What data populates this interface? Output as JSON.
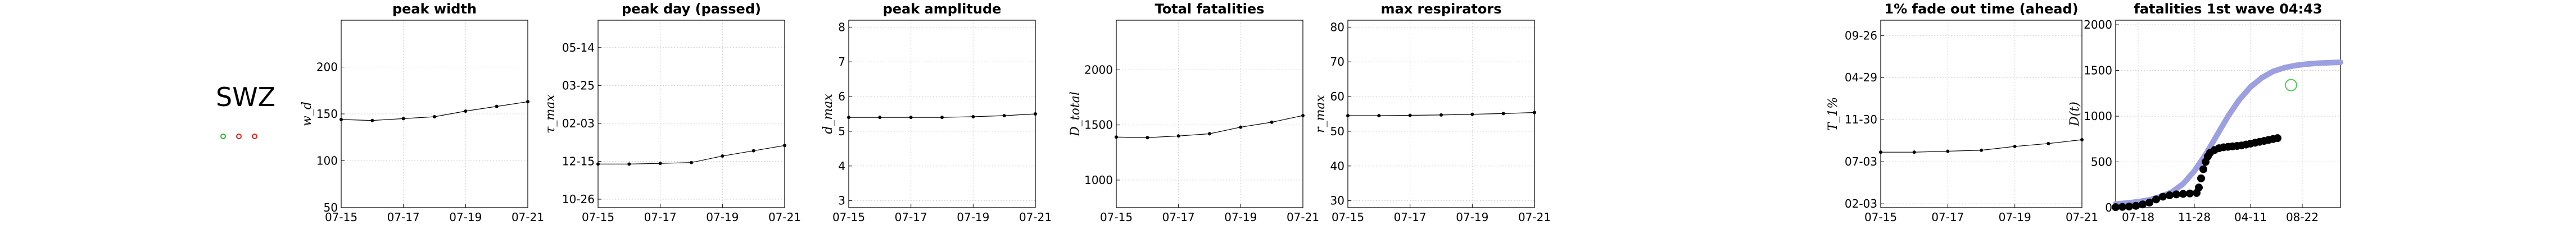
{
  "country": {
    "code": "SWZ",
    "indicators": [
      {
        "color": "#22bb22"
      },
      {
        "color": "#dd2222"
      },
      {
        "color": "#dd2222"
      }
    ]
  },
  "chart_data": [
    {
      "type": "line",
      "title": "peak width",
      "ylabel": "w_d",
      "x": [
        "07-15",
        "07-16",
        "07-17",
        "07-18",
        "07-19",
        "07-20",
        "07-21"
      ],
      "xticks": [
        "07-15",
        "07-17",
        "07-19",
        "07-21"
      ],
      "values": [
        144,
        143,
        145,
        147,
        153,
        158,
        163
      ],
      "ylim": [
        50,
        250
      ],
      "yticks": [
        {
          "v": 50,
          "label": "50"
        },
        {
          "v": 100,
          "label": "100"
        },
        {
          "v": 150,
          "label": "150"
        },
        {
          "v": 200,
          "label": "200"
        }
      ],
      "grid": true
    },
    {
      "type": "line",
      "title": "peak day (passed)",
      "ylabel": "τ_max",
      "x": [
        "07-15",
        "07-16",
        "07-17",
        "07-18",
        "07-19",
        "07-20",
        "07-21"
      ],
      "xticks": [
        "07-15",
        "07-17",
        "07-19",
        "07-21"
      ],
      "values": [
        1.67,
        1.67,
        1.7,
        1.74,
        2.05,
        2.3,
        2.55
      ],
      "ylim": [
        -0.4,
        8.5
      ],
      "yticks": [
        {
          "v": 0,
          "label": "10-26"
        },
        {
          "v": 1.8,
          "label": "12-15"
        },
        {
          "v": 3.6,
          "label": "02-03"
        },
        {
          "v": 5.4,
          "label": "03-25"
        },
        {
          "v": 7.2,
          "label": "05-14"
        }
      ],
      "grid": true
    },
    {
      "type": "line",
      "title": "peak amplitude",
      "ylabel": "d_max",
      "x": [
        "07-15",
        "07-16",
        "07-17",
        "07-18",
        "07-19",
        "07-20",
        "07-21"
      ],
      "xticks": [
        "07-15",
        "07-17",
        "07-19",
        "07-21"
      ],
      "values": [
        5.4,
        5.4,
        5.4,
        5.4,
        5.42,
        5.45,
        5.5
      ],
      "ylim": [
        2.8,
        8.2
      ],
      "yticks": [
        {
          "v": 3,
          "label": "3"
        },
        {
          "v": 4,
          "label": "4"
        },
        {
          "v": 5,
          "label": "5"
        },
        {
          "v": 6,
          "label": "6"
        },
        {
          "v": 7,
          "label": "7"
        },
        {
          "v": 8,
          "label": "8"
        }
      ],
      "grid": true
    },
    {
      "type": "line",
      "title": "Total fatalities",
      "ylabel": "D_total",
      "x": [
        "07-15",
        "07-16",
        "07-17",
        "07-18",
        "07-19",
        "07-20",
        "07-21"
      ],
      "xticks": [
        "07-15",
        "07-17",
        "07-19",
        "07-21"
      ],
      "values": [
        1390,
        1385,
        1400,
        1420,
        1480,
        1525,
        1585
      ],
      "ylim": [
        750,
        2450
      ],
      "yticks": [
        {
          "v": 1000,
          "label": "1000"
        },
        {
          "v": 1500,
          "label": "1500"
        },
        {
          "v": 2000,
          "label": "2000"
        }
      ],
      "grid": true
    },
    {
      "type": "line",
      "title": "max respirators",
      "ylabel": "r_max",
      "x": [
        "07-15",
        "07-16",
        "07-17",
        "07-18",
        "07-19",
        "07-20",
        "07-21"
      ],
      "xticks": [
        "07-15",
        "07-17",
        "07-19",
        "07-21"
      ],
      "values": [
        54.5,
        54.5,
        54.6,
        54.7,
        54.9,
        55.1,
        55.4
      ],
      "ylim": [
        28,
        82
      ],
      "yticks": [
        {
          "v": 30,
          "label": "30"
        },
        {
          "v": 40,
          "label": "40"
        },
        {
          "v": 50,
          "label": "50"
        },
        {
          "v": 60,
          "label": "60"
        },
        {
          "v": 70,
          "label": "70"
        },
        {
          "v": 80,
          "label": "80"
        }
      ],
      "grid": true
    },
    {
      "type": "line",
      "title": "1% fade out time (ahead)",
      "ylabel": "T_1%",
      "x": [
        "07-15",
        "07-16",
        "07-17",
        "07-18",
        "07-19",
        "07-20",
        "07-21"
      ],
      "xticks": [
        "07-15",
        "07-17",
        "07-19",
        "07-21"
      ],
      "values": [
        2.7,
        2.7,
        2.75,
        2.8,
        3.0,
        3.15,
        3.35
      ],
      "ylim": [
        -0.2,
        9.6
      ],
      "yticks": [
        {
          "v": 0,
          "label": "02-03"
        },
        {
          "v": 2.2,
          "label": "07-03"
        },
        {
          "v": 4.4,
          "label": "11-30"
        },
        {
          "v": 6.6,
          "label": "04-29"
        },
        {
          "v": 8.8,
          "label": "09-26"
        }
      ],
      "grid": true
    },
    {
      "type": "scatter",
      "title": "fatalities 1st wave 04:43",
      "ylabel": "D(t)",
      "xlim": [
        0,
        100
      ],
      "ylim": [
        0,
        2050
      ],
      "xticks": [
        {
          "v": 10,
          "label": "07-18"
        },
        {
          "v": 35,
          "label": "11-28"
        },
        {
          "v": 60,
          "label": "04-11"
        },
        {
          "v": 83,
          "label": "08-22"
        }
      ],
      "yticks": [
        {
          "v": 0,
          "label": "0"
        },
        {
          "v": 500,
          "label": "500"
        },
        {
          "v": 1000,
          "label": "1000"
        },
        {
          "v": 1500,
          "label": "1500"
        },
        {
          "v": 2000,
          "label": "2000"
        }
      ],
      "grid": true,
      "series": [
        {
          "role": "prediction",
          "color": "#9da0e0",
          "x": [
            0,
            5,
            10,
            15,
            20,
            25,
            30,
            35,
            40,
            45,
            50,
            55,
            60,
            65,
            70,
            75,
            80,
            85,
            90,
            95,
            100
          ],
          "y": [
            40,
            50,
            65,
            85,
            120,
            170,
            260,
            400,
            580,
            790,
            1000,
            1180,
            1320,
            1420,
            1490,
            1530,
            1555,
            1570,
            1580,
            1585,
            1590
          ]
        },
        {
          "role": "observed",
          "color": "#000000",
          "x": [
            0,
            3,
            6,
            9,
            12,
            15,
            18,
            21,
            24,
            27,
            30,
            33,
            36,
            37,
            38,
            39,
            40,
            41,
            42,
            44,
            46,
            48,
            50,
            52,
            54,
            56,
            58,
            60,
            62,
            64,
            66,
            68,
            70,
            72
          ],
          "y": [
            5,
            8,
            12,
            20,
            35,
            55,
            90,
            120,
            135,
            145,
            150,
            155,
            160,
            220,
            320,
            420,
            500,
            560,
            600,
            630,
            650,
            660,
            665,
            670,
            675,
            680,
            690,
            700,
            710,
            720,
            730,
            740,
            750,
            760
          ]
        },
        {
          "role": "marker",
          "color": "#55cc55",
          "x": [
            78
          ],
          "y": [
            1340
          ]
        }
      ]
    }
  ]
}
